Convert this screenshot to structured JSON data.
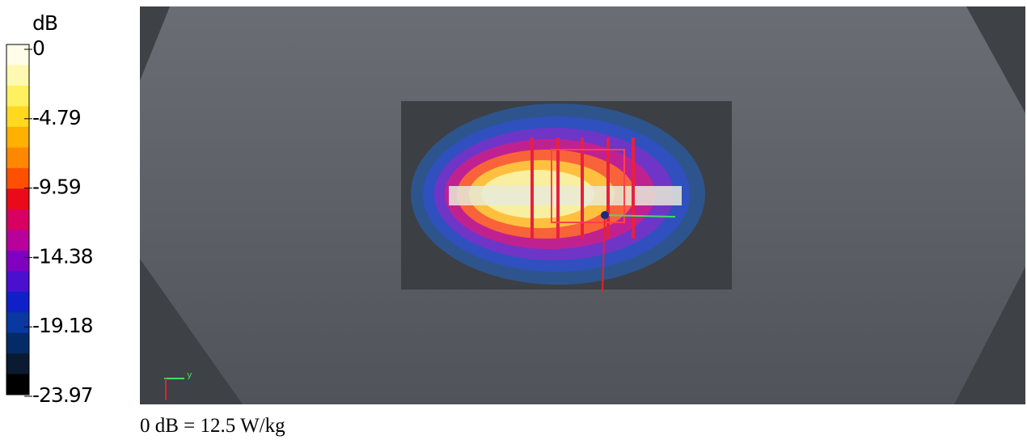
{
  "colorbar": {
    "unit": "dB",
    "ticks": [
      "0",
      "-4.79",
      "-9.59",
      "-14.38",
      "-19.18",
      "-23.97"
    ],
    "colors": [
      "#fffde8",
      "#fff8b0",
      "#fff060",
      "#ffd820",
      "#ffb000",
      "#ff8800",
      "#ff5000",
      "#ea0a1a",
      "#d80060",
      "#b8009a",
      "#8000c0",
      "#4a10d0",
      "#1020c8",
      "#0838a0",
      "#042a68",
      "#0a1a30",
      "#000000"
    ]
  },
  "axis_label": "y",
  "caption": "0 dB = 12.5 W/kg"
}
